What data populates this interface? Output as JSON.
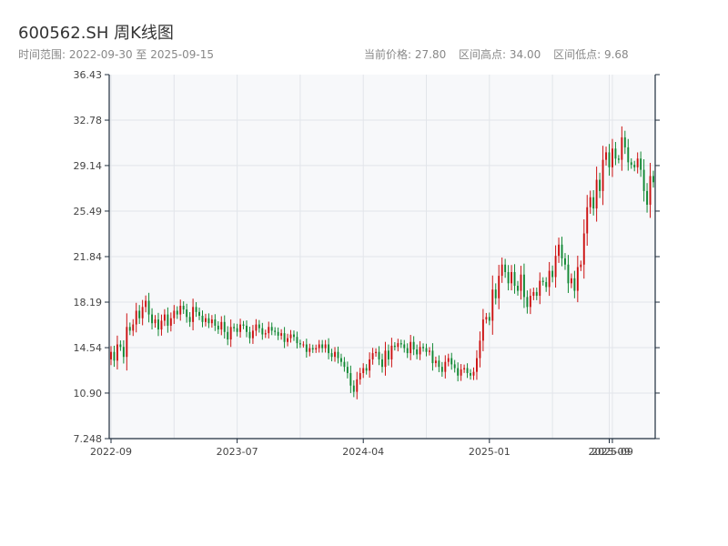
{
  "header": {
    "title": "600562.SH 周K线图",
    "range_text": "时间范围: 2022-09-30 至 2025-09-15",
    "current_price": "当前价格: 27.80",
    "range_high": "区间高点: 34.00",
    "range_low": "区间低点: 9.68"
  },
  "colors": {
    "up": "#cc1111",
    "down": "#118833",
    "plot_bg": "#f7f8fa",
    "grid": "#e2e5ea",
    "axis": "#1f2d3d"
  },
  "chart_data": {
    "type": "candlestick",
    "title": "600562.SH 周K线图",
    "xlabel": "",
    "ylabel": "",
    "ylim": [
      7.248,
      36.43
    ],
    "grid": true,
    "y_ticks": [
      "36.43",
      "32.78",
      "29.14",
      "25.49",
      "21.84",
      "18.19",
      "14.54",
      "10.90",
      "7.248"
    ],
    "x_ticks": [
      "2022-09",
      "2023-07",
      "2024-04",
      "2025-01",
      "2025-09",
      "2025-09"
    ],
    "x_tick_index": [
      0,
      40,
      80,
      120,
      158,
      159
    ],
    "dates_start": "2022-09-30",
    "dates_end": "2025-09-15",
    "closes": [
      14.2,
      13.5,
      14.8,
      14.6,
      13.8,
      16.2,
      15.9,
      16.4,
      17.5,
      16.9,
      17.8,
      18.3,
      17.2,
      16.5,
      16.8,
      16.0,
      16.7,
      17.2,
      16.3,
      16.9,
      17.5,
      17.2,
      17.9,
      17.6,
      17.0,
      16.6,
      17.8,
      17.4,
      17.1,
      16.6,
      16.9,
      16.5,
      16.8,
      16.3,
      16.0,
      16.6,
      15.8,
      15.2,
      16.2,
      16.1,
      15.8,
      16.4,
      16.3,
      15.8,
      15.3,
      15.9,
      16.4,
      16.1,
      15.6,
      15.7,
      16.2,
      15.9,
      15.8,
      15.5,
      15.7,
      15.0,
      15.3,
      15.6,
      15.4,
      14.9,
      14.8,
      14.8,
      14.2,
      14.5,
      14.4,
      14.5,
      14.8,
      14.5,
      14.8,
      14.1,
      13.8,
      14.2,
      13.7,
      13.4,
      13.0,
      12.5,
      11.5,
      11.0,
      12.0,
      12.5,
      12.9,
      12.7,
      13.6,
      14.1,
      14.2,
      13.6,
      13.0,
      14.3,
      13.6,
      14.7,
      14.6,
      14.9,
      14.8,
      14.5,
      14.1,
      15.0,
      14.4,
      14.0,
      14.6,
      14.5,
      14.2,
      14.3,
      13.3,
      13.5,
      13.0,
      12.6,
      13.4,
      13.7,
      13.2,
      12.9,
      12.3,
      12.8,
      12.9,
      12.5,
      12.3,
      12.6,
      13.7,
      15.1,
      16.8,
      17.0,
      16.7,
      19.2,
      18.5,
      20.3,
      21.2,
      20.6,
      19.7,
      20.6,
      19.5,
      19.1,
      20.4,
      18.6,
      17.8,
      18.7,
      19.0,
      18.7,
      19.9,
      19.8,
      19.4,
      20.7,
      20.2,
      21.9,
      22.8,
      21.7,
      21.2,
      19.7,
      20.1,
      19.1,
      21.0,
      21.2,
      23.7,
      25.8,
      26.6,
      25.7,
      28.0,
      27.1,
      29.6,
      30.2,
      29.0,
      30.5,
      29.7,
      29.6,
      31.4,
      30.6,
      29.4,
      29.2,
      29.0,
      29.7,
      28.8,
      27.1,
      26.0,
      28.3,
      27.8
    ],
    "opens": [
      13.6,
      14.2,
      13.5,
      14.8,
      14.6,
      13.8,
      16.2,
      15.9,
      16.4,
      17.5,
      16.9,
      17.8,
      18.3,
      17.2,
      16.5,
      16.8,
      16.0,
      16.7,
      17.2,
      16.3,
      16.9,
      17.5,
      17.2,
      17.9,
      17.6,
      17.0,
      16.6,
      17.8,
      17.4,
      17.1,
      16.6,
      16.9,
      16.5,
      16.8,
      16.3,
      16.0,
      16.6,
      15.8,
      15.2,
      16.2,
      16.1,
      15.8,
      16.4,
      16.3,
      15.8,
      15.3,
      15.9,
      16.4,
      16.1,
      15.6,
      15.7,
      16.2,
      15.9,
      15.8,
      15.5,
      15.7,
      15.0,
      15.3,
      15.6,
      15.4,
      14.9,
      14.8,
      14.8,
      14.2,
      14.5,
      14.4,
      14.5,
      14.8,
      14.5,
      14.8,
      14.1,
      13.8,
      14.2,
      13.7,
      13.4,
      13.0,
      12.5,
      11.5,
      11.0,
      12.0,
      12.5,
      12.9,
      12.7,
      13.6,
      14.1,
      14.2,
      13.6,
      13.0,
      14.3,
      13.6,
      14.7,
      14.6,
      14.9,
      14.8,
      14.5,
      14.1,
      15.0,
      14.4,
      14.0,
      14.6,
      14.5,
      14.2,
      14.3,
      13.3,
      13.5,
      13.0,
      12.6,
      13.4,
      13.7,
      13.2,
      12.9,
      12.3,
      12.8,
      12.9,
      12.5,
      12.3,
      12.6,
      13.7,
      15.1,
      16.8,
      17.0,
      16.7,
      19.2,
      18.5,
      20.3,
      21.2,
      20.6,
      19.7,
      20.6,
      19.5,
      19.1,
      20.4,
      18.6,
      17.8,
      18.7,
      19.0,
      18.7,
      19.9,
      19.8,
      19.4,
      20.7,
      20.2,
      21.9,
      22.8,
      21.7,
      21.2,
      19.7,
      20.1,
      19.1,
      21.0,
      21.2,
      23.7,
      25.8,
      26.6,
      25.7,
      28.0,
      27.1,
      29.6,
      30.2,
      29.0,
      30.5,
      29.7,
      29.6,
      31.4,
      30.6,
      29.4,
      29.2,
      29.0,
      29.7,
      28.8,
      27.1,
      26.0,
      28.3
    ]
  }
}
